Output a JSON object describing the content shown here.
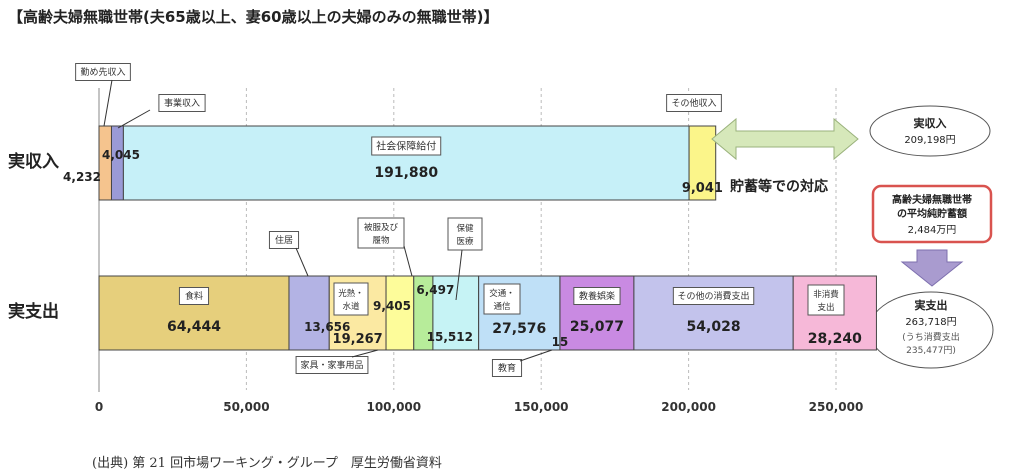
{
  "title": "【高齢夫婦無職世帯(夫65歳以上、妻60歳以上の夫婦のみの無職世帯)】",
  "source": "(出典) 第 21 回市場ワーキング・グループ　厚生労働省資料",
  "colors": {
    "wage": "#f5c48e",
    "business": "#9a9ad6",
    "pension": "#c6f0f8",
    "other_income": "#fbf58a",
    "food": "#e6cf7c",
    "housing": "#b3b3e4",
    "utilities": "#fbe9a2",
    "furniture": "#fdfc9a",
    "clothing": "#b7ec9a",
    "medical": "#c6f3f5",
    "transport": "#bfe0f7",
    "education": "#9fd6f7",
    "recreation": "#c98ae2",
    "other_consumption": "#c3c3ec",
    "non_consumption": "#f6b8d8",
    "arrow": "#d6e8ba",
    "down_arrow": "#a99bcf",
    "savings_border": "#d9534f"
  },
  "notes": {
    "savings_gap": "貯蓄等での対応",
    "income_total_label": "実収入",
    "income_total_value": "209,198円",
    "savings_label": "高齢夫婦無職世帯の平均純貯蓄額",
    "savings_l1": "高齢夫婦無職世帯",
    "savings_l2": "の平均純貯蓄額",
    "savings_value": "2,484万円",
    "expense_total_label": "実支出",
    "expense_total_value": "263,718円",
    "expense_sub1": "(うち消費支出",
    "expense_sub2": "235,477円)"
  },
  "chart_data": {
    "type": "bar",
    "orientation": "horizontal-stacked",
    "categories": [
      "実収入",
      "実支出"
    ],
    "xlim": [
      0,
      250000
    ],
    "xticks": [
      "0",
      "50,000",
      "100,000",
      "150,000",
      "200,000",
      "250,000"
    ],
    "xtick_values": [
      0,
      50000,
      100000,
      150000,
      200000,
      250000
    ],
    "grid": "vertical-dashed",
    "income": [
      {
        "name": "勤め先収入",
        "value": 4232,
        "label": "4,232",
        "color_key": "wage"
      },
      {
        "name": "事業収入",
        "value": 4045,
        "label": "4,045",
        "color_key": "business"
      },
      {
        "name": "社会保障給付",
        "value": 191880,
        "label": "191,880",
        "color_key": "pension"
      },
      {
        "name": "その他収入",
        "value": 9041,
        "label": "9,041",
        "color_key": "other_income"
      }
    ],
    "expenditure": [
      {
        "name": "食料",
        "value": 64444,
        "label": "64,444",
        "color_key": "food"
      },
      {
        "name": "住居",
        "value": 13656,
        "label": "13,656",
        "color_key": "housing"
      },
      {
        "name": "光熱・水道",
        "value": 19267,
        "label": "19,267",
        "color_key": "utilities"
      },
      {
        "name": "家具・家事用品",
        "value": 9405,
        "label": "9,405",
        "color_key": "furniture"
      },
      {
        "name": "被服及び履物",
        "value": 6497,
        "label": "6,497",
        "color_key": "clothing"
      },
      {
        "name": "保健医療",
        "value": 15512,
        "label": "15,512",
        "color_key": "medical"
      },
      {
        "name": "交通・通信",
        "value": 27576,
        "label": "27,576",
        "color_key": "transport"
      },
      {
        "name": "教育",
        "value": 15,
        "label": "15",
        "color_key": "education"
      },
      {
        "name": "教養娯楽",
        "value": 25077,
        "label": "25,077",
        "color_key": "recreation"
      },
      {
        "name": "その他の消費支出",
        "value": 54028,
        "label": "54,028",
        "color_key": "other_consumption"
      },
      {
        "name": "非消費支出",
        "value": 28240,
        "label": "28,240",
        "color_key": "non_consumption"
      }
    ]
  }
}
